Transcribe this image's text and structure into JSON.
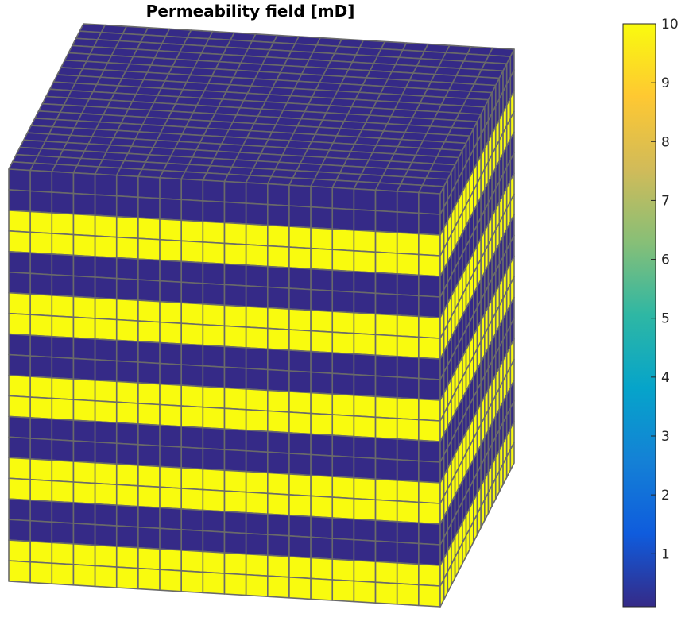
{
  "chart_data": {
    "type": "heatmap",
    "title": "Permeability field [mD]",
    "grid": {
      "nx": 20,
      "ny": 20,
      "nz": 20
    },
    "layer_values_top_to_bottom": [
      0.1,
      0.1,
      10,
      10,
      0.1,
      0.1,
      10,
      10,
      0.1,
      0.1,
      10,
      10,
      0.1,
      0.1,
      10,
      10,
      0.1,
      0.1,
      10,
      10
    ],
    "colorbar": {
      "min": 0.1,
      "max": 10,
      "ticks": [
        1,
        2,
        3,
        4,
        5,
        6,
        7,
        8,
        9,
        10
      ],
      "tick_labels": [
        "1",
        "2",
        "3",
        "4",
        "5",
        "6",
        "7",
        "8",
        "9",
        "10"
      ],
      "colormap": "parula",
      "colormap_stops": [
        "#352a87",
        "#0f5cdd",
        "#1481d6",
        "#06a4ca",
        "#2eb7a4",
        "#87bf77",
        "#d1bb59",
        "#fec832",
        "#f9fb0e"
      ]
    },
    "colors": {
      "low": "#352a87",
      "high": "#f9fb0e",
      "edge": "#6a6a6a"
    },
    "grid_lines": "on",
    "view": "3d"
  }
}
